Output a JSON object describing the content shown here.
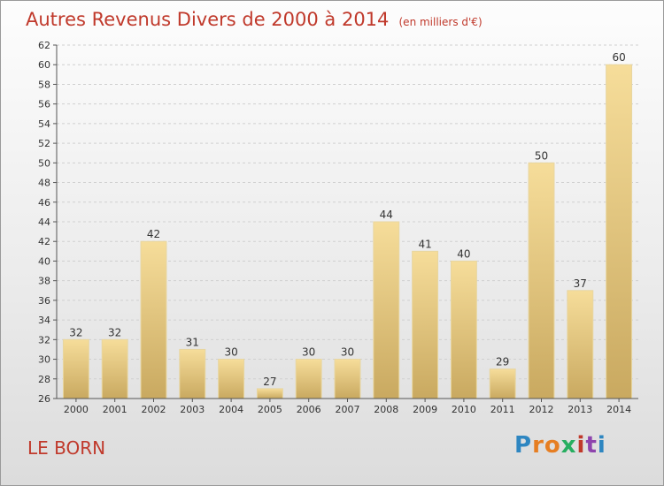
{
  "title": "Autres Revenus Divers de 2000 à 2014",
  "unit": "(en milliers d'€)",
  "location": "LE BORN",
  "brand": "Proxiti",
  "colors": {
    "title": "#c0392b",
    "bar_top": "#f6dd9a",
    "bar_bottom": "#c9a960",
    "brand": [
      "#2e86c1",
      "#e67e22",
      "#e67e22",
      "#27ae60",
      "#c0392b",
      "#8e44ad",
      "#2e86c1"
    ]
  },
  "chart_data": {
    "type": "bar",
    "title": "Autres Revenus Divers de 2000 à 2014",
    "xlabel": "",
    "ylabel": "",
    "categories": [
      "2000",
      "2001",
      "2002",
      "2003",
      "2004",
      "2005",
      "2006",
      "2007",
      "2008",
      "2009",
      "2010",
      "2011",
      "2012",
      "2013",
      "2014"
    ],
    "values": [
      32,
      32,
      42,
      31,
      30,
      27,
      30,
      30,
      44,
      41,
      40,
      29,
      50,
      37,
      60
    ],
    "ylim": [
      26,
      62
    ],
    "yticks": [
      26,
      28,
      30,
      32,
      34,
      36,
      38,
      40,
      42,
      44,
      46,
      48,
      50,
      52,
      54,
      56,
      58,
      60,
      62
    ],
    "grid": true,
    "legend": "none"
  }
}
